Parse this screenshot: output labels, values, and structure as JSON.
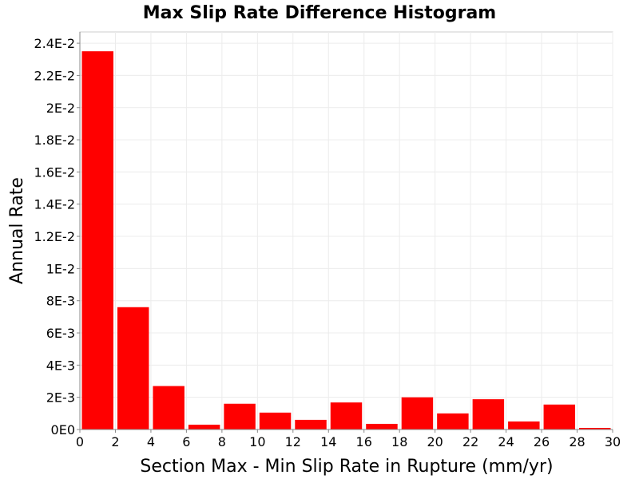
{
  "chart_data": {
    "type": "bar",
    "title": "Max Slip Rate Difference Histogram",
    "xlabel": "Section Max - Min Slip Rate in Rupture (mm/yr)",
    "ylabel": "Annual Rate",
    "xlim": [
      0,
      30
    ],
    "ylim": [
      0,
      0.0247
    ],
    "bin_width": 2,
    "grid": true,
    "legend": "none",
    "bar_color": "#ff0000",
    "x": [
      1,
      3,
      5,
      7,
      9,
      11,
      13,
      15,
      17,
      19,
      21,
      23,
      25,
      27,
      29
    ],
    "values": [
      0.0235,
      0.0076,
      0.0027,
      0.0003,
      0.0016,
      0.00105,
      0.0006,
      0.00168,
      0.00035,
      0.002,
      0.001,
      0.00188,
      0.0005,
      0.00155,
      0.0001
    ],
    "x_ticks": [
      0,
      2,
      4,
      6,
      8,
      10,
      12,
      14,
      16,
      18,
      20,
      22,
      24,
      26,
      28,
      30
    ],
    "x_tick_labels": [
      "0",
      "2",
      "4",
      "6",
      "8",
      "10",
      "12",
      "14",
      "16",
      "18",
      "20",
      "22",
      "24",
      "26",
      "28",
      "30"
    ],
    "y_ticks": [
      0,
      0.002,
      0.004,
      0.006,
      0.008,
      0.01,
      0.012,
      0.014,
      0.016,
      0.018,
      0.02,
      0.022,
      0.024
    ],
    "y_tick_labels": [
      "0E0",
      "2E-3",
      "4E-3",
      "6E-3",
      "8E-3",
      "1E-2",
      "1.2E-2",
      "1.4E-2",
      "1.6E-2",
      "1.8E-2",
      "2E-2",
      "2.2E-2",
      "2.4E-2"
    ]
  }
}
